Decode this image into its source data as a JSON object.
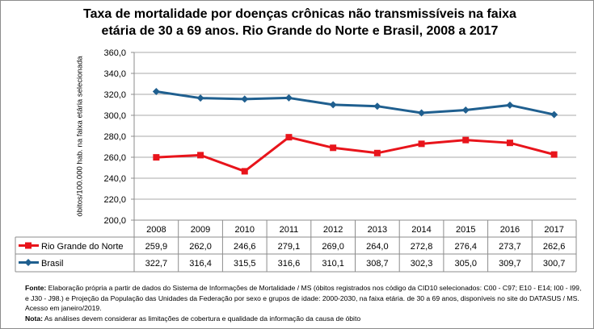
{
  "chart_data": {
    "type": "line",
    "title": "Taxa de mortalidade por doenças crônicas não transmissíveis na faixa etária de 30 a  69 anos. Rio Grande do Norte e Brasil, 2008 a 2017",
    "xlabel": "",
    "ylabel": "óbitos/100.000 hab. na faixa etária selecionada",
    "ylim": [
      200,
      360
    ],
    "yticks": [
      "200,0",
      "220,0",
      "240,0",
      "260,0",
      "280,0",
      "300,0",
      "320,0",
      "340,0",
      "360,0"
    ],
    "categories": [
      "2008",
      "2009",
      "2010",
      "2011",
      "2012",
      "2013",
      "2014",
      "2015",
      "2016",
      "2017"
    ],
    "series": [
      {
        "name": "Rio Grande do Norte",
        "color": "#e8141b",
        "marker": "square",
        "values": [
          259.9,
          262.0,
          246.6,
          279.1,
          269.0,
          264.0,
          272.8,
          276.4,
          273.7,
          262.6
        ],
        "labels": [
          "259,9",
          "262,0",
          "246,6",
          "279,1",
          "269,0",
          "264,0",
          "272,8",
          "276,4",
          "273,7",
          "262,6"
        ]
      },
      {
        "name": "Brasil",
        "color": "#1f5f8f",
        "marker": "diamond",
        "values": [
          322.7,
          316.4,
          315.5,
          316.6,
          310.1,
          308.7,
          302.3,
          305.0,
          309.7,
          300.7
        ],
        "labels": [
          "322,7",
          "316,4",
          "315,5",
          "316,6",
          "310,1",
          "308,7",
          "302,3",
          "305,0",
          "309,7",
          "300,7"
        ]
      }
    ],
    "grid": "horizontal",
    "legend": "data-table"
  },
  "notes": {
    "fonte_label": "Fonte:",
    "fonte_text": " Elaboração própria a partir de dados do Sistema de Informações de Mortalidade / MS (óbitos registrados nos código da CID10 selecionados: C00 - C97; E10 - E14; I00 - I99, e J30 - J98.) e Projeção da População das Unidades da Federação por sexo e grupos de idade: 2000-2030, na faixa etária. de 30 a 69 anos, disponíveis no site do DATASUS / MS.  Acesso em janeiro/2019.",
    "nota_label": "Nota:",
    "nota_text": "  As análises devem considerar as limitações de cobertura e qualidade da informação da causa de óbito"
  }
}
